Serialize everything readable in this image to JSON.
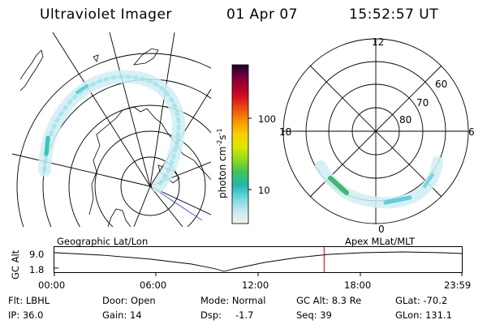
{
  "header": {
    "title": "Ultraviolet Imager",
    "date": "01 Apr 07",
    "time": "15:52:57 UT"
  },
  "left_map": {
    "label": "Geographic Lat/Lon"
  },
  "right_map": {
    "label": "Apex MLat/MLT",
    "mlt_labels": {
      "top": "12",
      "left": "18",
      "right": "6",
      "bottom": "0"
    },
    "lat_labels": [
      "60",
      "70",
      "80"
    ]
  },
  "colorbar": {
    "unit_label": "photon cm",
    "exp1": "-2",
    "mid": "s",
    "exp2": "-1",
    "ticks": [
      "100",
      "10"
    ],
    "colors": [
      "#f0f0f0",
      "#c8e8f0",
      "#6fd8e0",
      "#20b8b0",
      "#40c060",
      "#90d820",
      "#d8e800",
      "#f8d000",
      "#f89800",
      "#f05010",
      "#d01020",
      "#a00030",
      "#600040",
      "#200020"
    ]
  },
  "altitude_plot": {
    "ylabel": "GC Alt",
    "ymax": "9.0",
    "ymin": "1.8",
    "x_ticks": [
      "00:00",
      "06:00",
      "12:00",
      "18:00",
      "23:59"
    ],
    "current_time_fraction": 0.662
  },
  "info": {
    "row1": {
      "flt": "Flt: LBHL",
      "door": "Door: Open",
      "mode": "Mode: Normal",
      "gcalt": "GC Alt: 8.3 Re",
      "glat": "GLat: -70.2"
    },
    "row2": {
      "ip": "IP: 36.0",
      "gain": "Gain: 14",
      "dsp_label": "Dsp:",
      "dsp_value": "-1.7",
      "seq": "Seq: 39",
      "glon": "GLon: 131.1"
    }
  }
}
